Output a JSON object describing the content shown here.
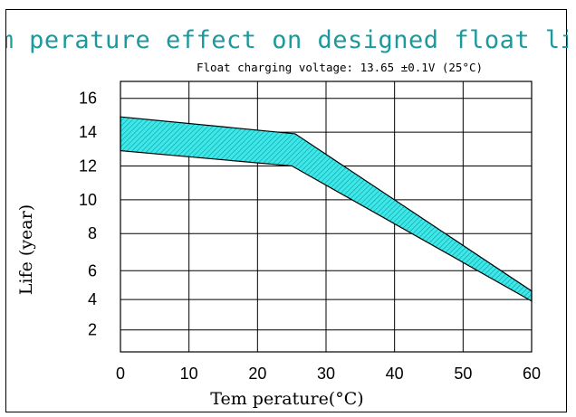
{
  "chart_data": {
    "type": "area",
    "title": "Tem perature effect on designed float life",
    "subtitle": "Float charging voltage: 13.65 ±0.1V (25°C)",
    "xlabel": "Tem perature(°C)",
    "ylabel": "Life (year)",
    "xlim": [
      0,
      60
    ],
    "ylim": [
      1,
      17
    ],
    "x_ticks": [
      "0",
      "10",
      "20",
      "30",
      "40",
      "50",
      "60"
    ],
    "y_ticks": [
      {
        "value": 16,
        "label": "16"
      },
      {
        "value": 14,
        "label": "14"
      },
      {
        "value": 12,
        "label": "12"
      },
      {
        "value": 10,
        "label": "10"
      },
      {
        "value": 8,
        "label": "8"
      },
      {
        "value": 5.8,
        "label": "6"
      },
      {
        "value": 4.1,
        "label": "4"
      },
      {
        "value": 2.3,
        "label": "2"
      }
    ],
    "grid": true,
    "band": {
      "upper": [
        {
          "x": 0,
          "y": 14.9
        },
        {
          "x": 25.5,
          "y": 13.9
        },
        {
          "x": 60,
          "y": 4.6
        }
      ],
      "lower": [
        {
          "x": 0,
          "y": 12.9
        },
        {
          "x": 25,
          "y": 12.0
        },
        {
          "x": 60,
          "y": 4.0
        }
      ]
    },
    "colors": {
      "band_fill": "#3fe8e8",
      "hatch": "#0a9aa0",
      "title": "#1b9a9e",
      "line": "#000000"
    }
  }
}
